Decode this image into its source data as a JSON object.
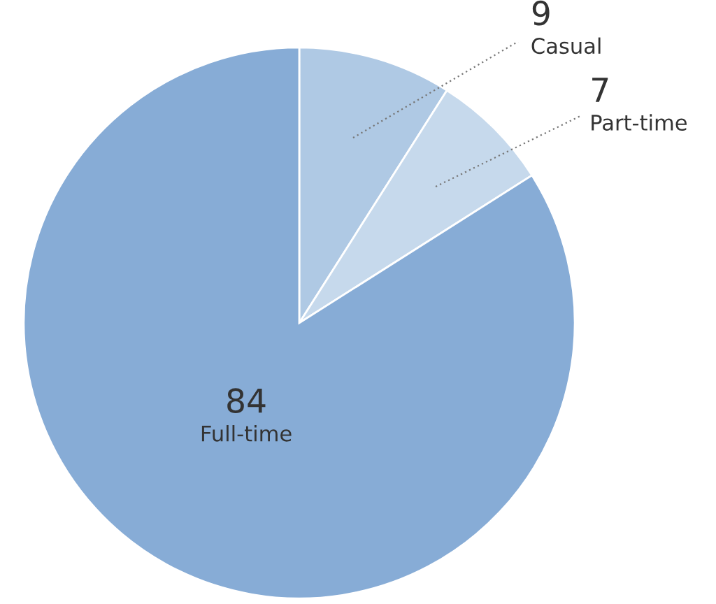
{
  "chart_data": {
    "type": "pie",
    "categories": [
      "Casual",
      "Part-time",
      "Full-time"
    ],
    "values": [
      9,
      7,
      84
    ],
    "colors": [
      "#afc9e4",
      "#c6d9ec",
      "#87acd6"
    ],
    "data_labels": true,
    "legend": false
  }
}
